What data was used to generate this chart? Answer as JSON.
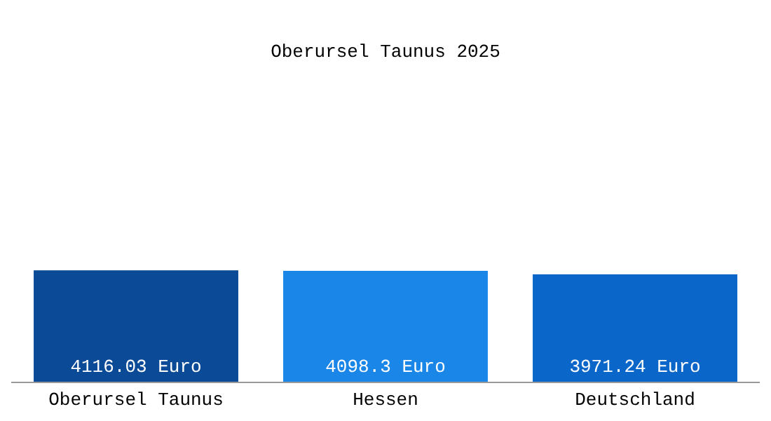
{
  "chart_data": {
    "type": "bar",
    "title": "Oberursel Taunus 2025",
    "categories": [
      "Oberursel Taunus",
      "Hessen",
      "Deutschland"
    ],
    "values": [
      4116.03,
      4098.3,
      3971.24
    ],
    "colors": [
      "#0b4a96",
      "#1a86e8",
      "#0a66c8"
    ],
    "value_labels": [
      "4116.03 Euro",
      "4098.3 Euro",
      "3971.24 Euro"
    ],
    "tick_labels": "x",
    "legend": false
  }
}
